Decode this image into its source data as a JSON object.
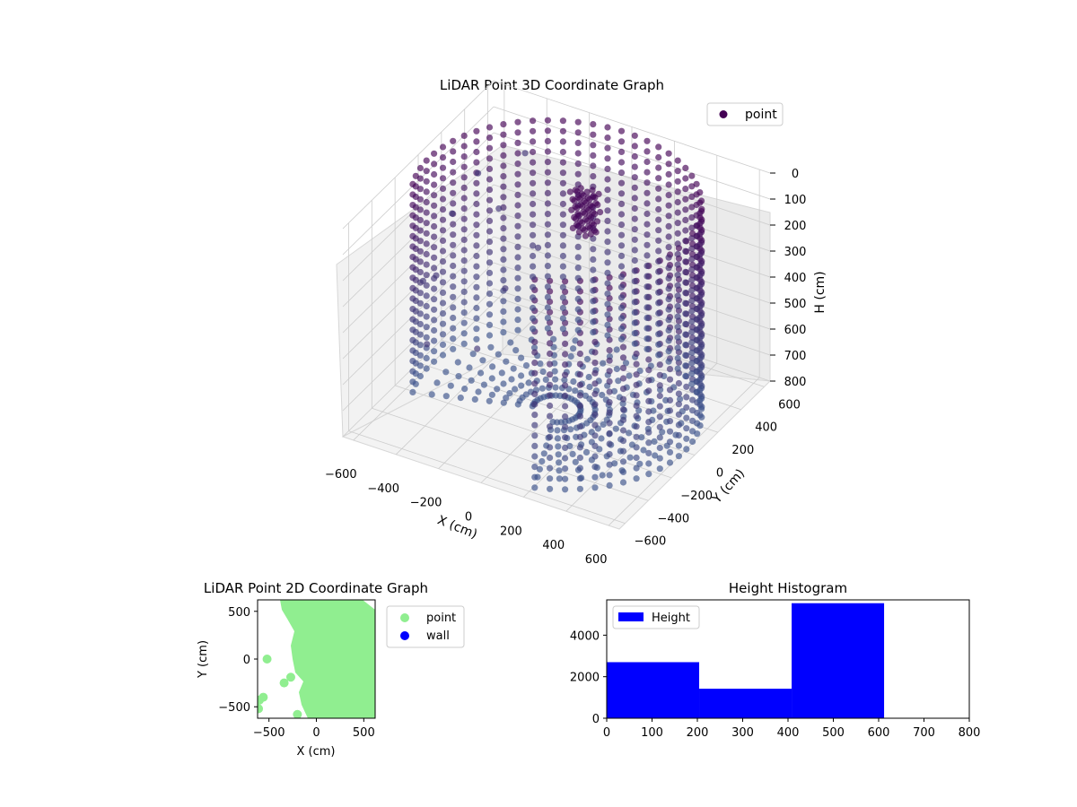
{
  "figure": {
    "background": "#ffffff"
  },
  "chart_data": [
    {
      "type": "scatter3d",
      "title": "LiDAR Point 3D Coordinate Graph",
      "xlabel": "X (cm)",
      "ylabel": "Y (cm)",
      "zlabel": "H (cm)",
      "xlim": [
        -650,
        650
      ],
      "ylim": [
        -650,
        650
      ],
      "zlim": [
        0,
        800
      ],
      "z_inverted": true,
      "xticks": [
        "−600",
        "−400",
        "−200",
        "0",
        "200",
        "400",
        "600"
      ],
      "yticks": [
        "−600",
        "−400",
        "−200",
        "0",
        "200",
        "400",
        "600"
      ],
      "zticks": [
        "0",
        "100",
        "200",
        "300",
        "400",
        "500",
        "600",
        "700",
        "800"
      ],
      "legend": {
        "position": "top-right",
        "entries": [
          {
            "name": "point",
            "color": "#440154"
          }
        ]
      },
      "colormap": "viridis (dark purple to blue, by distance)",
      "description_series": {
        "name": "point",
        "shape": "partial ring wall of radius ~600 cm spanning ~270 degrees, heights 0-800 cm, plus scattered points and a dense cluster near (-150, 450)"
      },
      "grid": true
    },
    {
      "type": "scatter",
      "title": "LiDAR Point 2D Coordinate Graph",
      "xlabel": "X (cm)",
      "ylabel": "Y (cm)",
      "xlim": [
        -620,
        620
      ],
      "ylim": [
        -620,
        620
      ],
      "xticks": [
        "−500",
        "0",
        "500"
      ],
      "yticks": [
        "500",
        "0",
        "−500"
      ],
      "legend": {
        "position": "outside-right",
        "entries": [
          {
            "name": "point",
            "color": "#90ee90"
          },
          {
            "name": "wall",
            "color": "#0000ff"
          }
        ]
      },
      "series": [
        {
          "name": "point",
          "color": "#90ee90",
          "points": [
            [
              -520,
              0
            ],
            [
              -340,
              -250
            ],
            [
              -270,
              -190
            ],
            [
              -200,
              -580
            ],
            [
              -560,
              -400
            ],
            [
              -600,
              -430
            ],
            [
              -610,
              -520
            ]
          ]
        },
        {
          "name": "wall",
          "color": "#0000ff",
          "points": []
        }
      ]
    },
    {
      "type": "bar",
      "title": "Height Histogram",
      "xlabel": "",
      "ylabel": "",
      "xlim": [
        0,
        800
      ],
      "ylim": [
        0,
        5700
      ],
      "xticks": [
        "0",
        "100",
        "200",
        "300",
        "400",
        "500",
        "600",
        "700",
        "800"
      ],
      "yticks": [
        "0",
        "2000",
        "4000"
      ],
      "legend": {
        "position": "top-left",
        "entries": [
          {
            "name": "Height",
            "color": "#0000ff"
          }
        ]
      },
      "bins": [
        [
          0,
          204
        ],
        [
          204,
          408
        ],
        [
          408,
          612
        ],
        [
          612,
          800
        ]
      ],
      "values": [
        2700,
        1420,
        5540,
        0
      ],
      "color": "#0000ff"
    }
  ]
}
